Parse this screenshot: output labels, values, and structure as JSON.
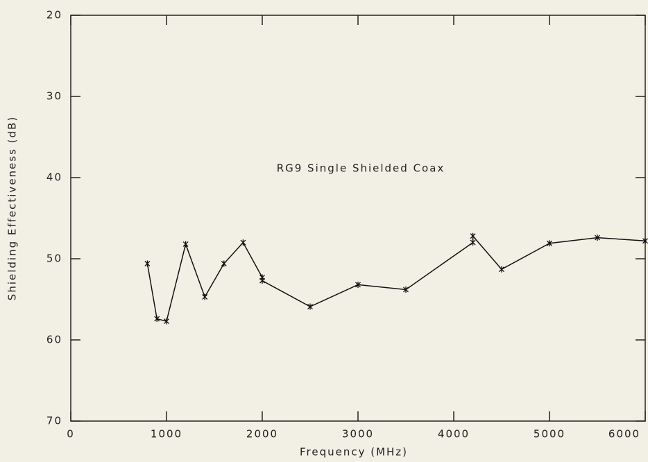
{
  "chart_data": {
    "type": "line",
    "annotation": "RG9 Single Shielded Coax",
    "xlabel": "Frequency (MHz)",
    "ylabel": "Shielding Effectiveness (dB)",
    "x": [
      800,
      900,
      1000,
      1200,
      1400,
      1600,
      1800,
      2000,
      2000,
      2500,
      3000,
      3500,
      4200,
      4200,
      4500,
      5000,
      5500,
      6000
    ],
    "values": [
      50.6,
      57.4,
      57.7,
      48.2,
      54.7,
      50.6,
      48.0,
      52.3,
      52.7,
      55.9,
      53.2,
      53.8,
      48.0,
      47.2,
      51.3,
      48.1,
      47.4,
      47.8
    ],
    "color": "#111111",
    "xlim": [
      0,
      6000
    ],
    "xticks": [
      0,
      1000,
      2000,
      3000,
      4000,
      5000,
      6000
    ],
    "ylim": [
      70,
      20
    ],
    "yticks": [
      20,
      30,
      40,
      50,
      60,
      70
    ]
  }
}
